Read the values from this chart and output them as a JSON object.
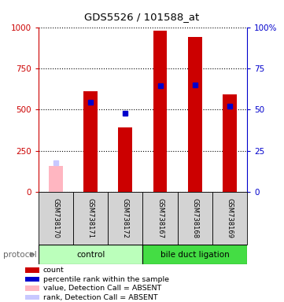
{
  "title": "GDS5526 / 101588_at",
  "samples": [
    "GSM738170",
    "GSM738171",
    "GSM738172",
    "GSM738167",
    "GSM738168",
    "GSM738169"
  ],
  "red_values": [
    null,
    610,
    390,
    980,
    940,
    590
  ],
  "pink_values": [
    155,
    null,
    null,
    null,
    null,
    null
  ],
  "blue_values_pct": [
    null,
    54.5,
    47.5,
    64.5,
    64.8,
    52.0
  ],
  "lavender_values_pct": [
    17.5,
    null,
    null,
    null,
    null,
    null
  ],
  "ylim_left": [
    0,
    1000
  ],
  "ylim_right": [
    0,
    100
  ],
  "yticks_left": [
    0,
    250,
    500,
    750,
    1000
  ],
  "yticks_right": [
    0,
    25,
    50,
    75,
    100
  ],
  "left_axis_color": "#cc0000",
  "right_axis_color": "#0000cc",
  "bg_color": "#ffffff",
  "sample_box_color": "#d3d3d3",
  "control_color": "#bbffbb",
  "bile_color": "#44dd44",
  "legend_items": [
    {
      "label": "count",
      "color": "#cc0000"
    },
    {
      "label": "percentile rank within the sample",
      "color": "#0000cc"
    },
    {
      "label": "value, Detection Call = ABSENT",
      "color": "#ffb6c1"
    },
    {
      "label": "rank, Detection Call = ABSENT",
      "color": "#c8c8ff"
    }
  ],
  "bar_width": 0.4,
  "protocol_label": "protocol"
}
